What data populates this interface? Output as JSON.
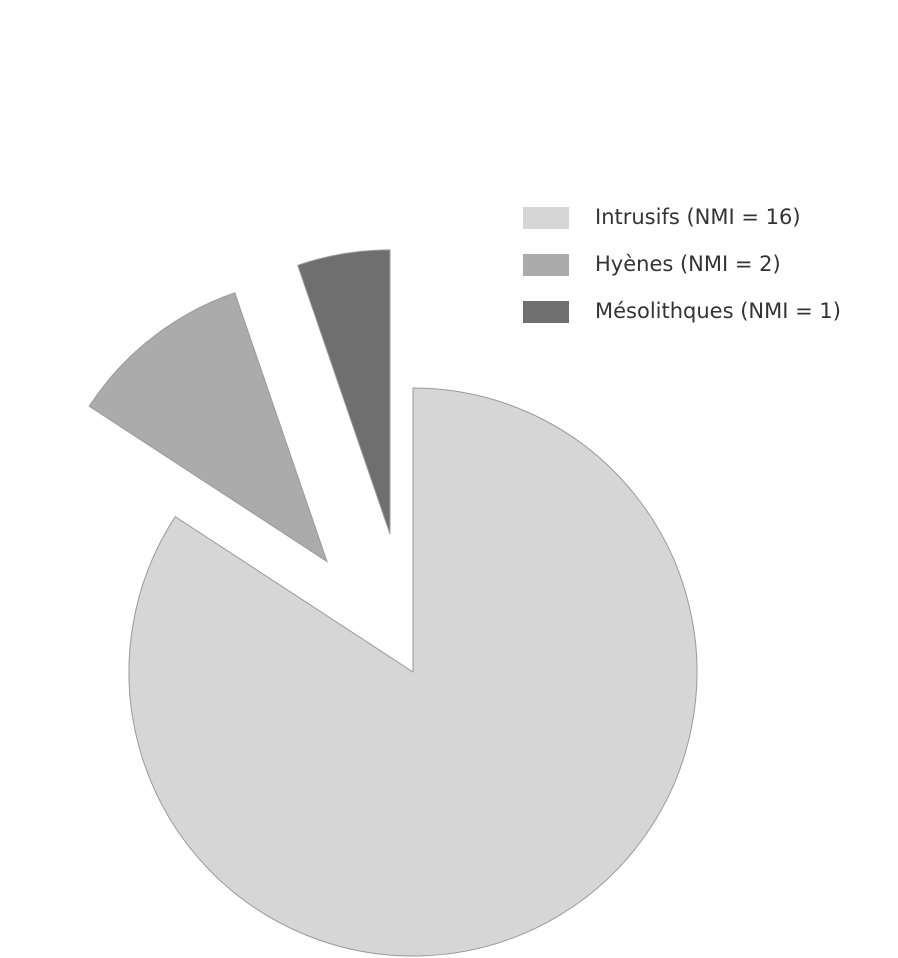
{
  "chart_data": {
    "type": "pie",
    "categories": [
      "Intrusifs (NMI = 16)",
      "Hyènes (NMI = 2)",
      "Mésolithques (NMI = 1)"
    ],
    "values": [
      16,
      2,
      1
    ],
    "colors": [
      "#d6d6d6",
      "#ababab",
      "#6f6f6f"
    ]
  }
}
